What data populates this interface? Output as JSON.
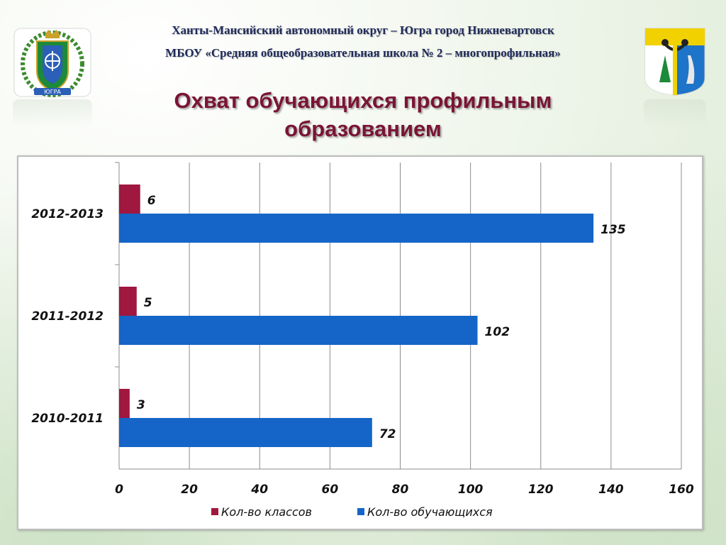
{
  "header": {
    "line1": "Ханты-Мансийский автономный округ – Югра город Нижневартовск",
    "line2": "МБОУ «Средняя общеобразовательная школа № 2 – многопрофильная»",
    "title_line1": "Охват обучающихся профильным",
    "title_line2": "образованием"
  },
  "emblems": {
    "left": "coat-of-arms-yugra",
    "left_text": "ЮГРА",
    "right": "coat-of-arms-nizhnevartovsk"
  },
  "colors": {
    "classes": "#a0173f",
    "students": "#1565c8",
    "title": "#7a1436",
    "header": "#1f2a5a"
  },
  "chart_data": {
    "type": "bar",
    "orientation": "horizontal",
    "categories": [
      "2010-2011",
      "2011-2012",
      "2012-2013"
    ],
    "series": [
      {
        "name": "Кол-во классов",
        "values": [
          3,
          5,
          6
        ]
      },
      {
        "name": "Кол-во обучающихся",
        "values": [
          72,
          102,
          135
        ]
      }
    ],
    "xlim": [
      0,
      160
    ],
    "xticks": [
      "0",
      "20",
      "40",
      "60",
      "80",
      "100",
      "120",
      "140",
      "160"
    ],
    "grid": true,
    "legend": "bottom"
  }
}
